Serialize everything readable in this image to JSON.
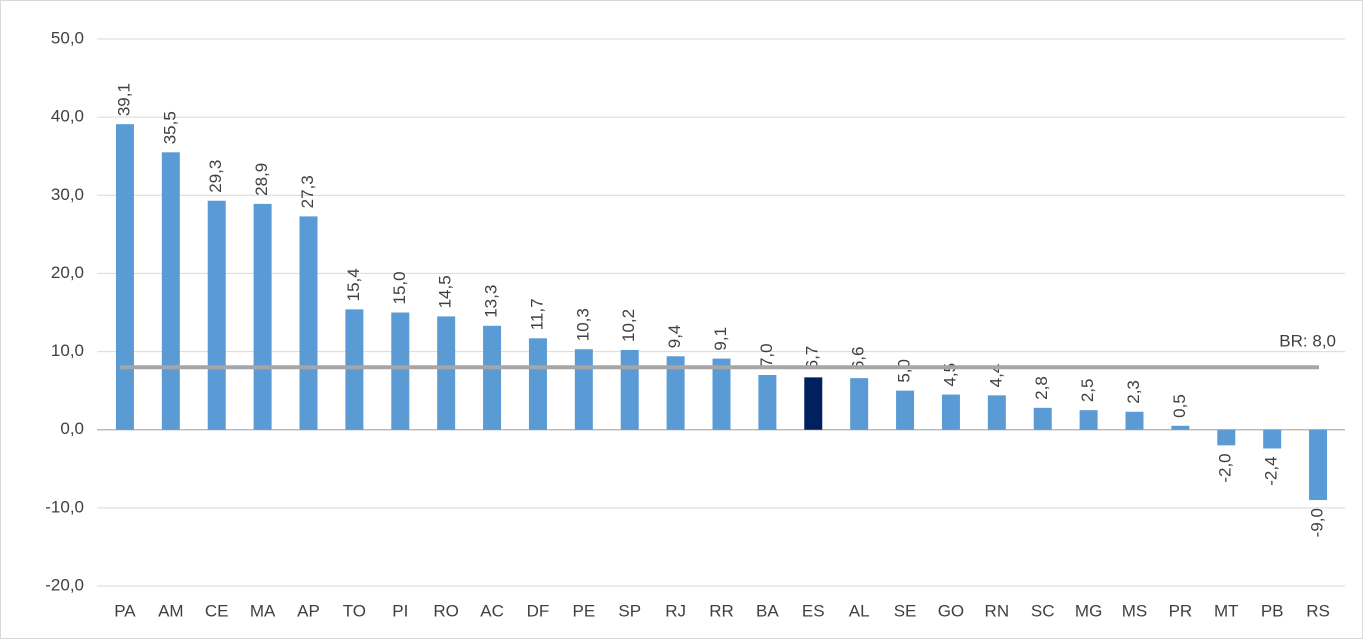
{
  "chart_data": {
    "type": "bar",
    "categories": [
      "PA",
      "AM",
      "CE",
      "MA",
      "AP",
      "TO",
      "PI",
      "RO",
      "AC",
      "DF",
      "PE",
      "SP",
      "RJ",
      "RR",
      "BA",
      "ES",
      "AL",
      "SE",
      "GO",
      "RN",
      "SC",
      "MG",
      "MS",
      "PR",
      "MT",
      "PB",
      "RS"
    ],
    "values": [
      39.1,
      35.5,
      29.3,
      28.9,
      27.3,
      15.4,
      15.0,
      14.5,
      13.3,
      11.7,
      10.3,
      10.2,
      9.4,
      9.1,
      7.0,
      6.7,
      6.6,
      5.0,
      4.5,
      4.4,
      2.8,
      2.5,
      2.3,
      0.5,
      -2.0,
      -2.4,
      -9.0
    ],
    "value_labels": [
      "39,1",
      "35,5",
      "29,3",
      "28,9",
      "27,3",
      "15,4",
      "15,0",
      "14,5",
      "13,3",
      "11,7",
      "10,3",
      "10,2",
      "9,4",
      "9,1",
      "7,0",
      "6,7",
      "6,6",
      "5,0",
      "4,5",
      "4,4",
      "2,8",
      "2,5",
      "2,3",
      "0,5",
      "-2,0",
      "-2,4",
      "-9,0"
    ],
    "colors": [
      "#5b9bd5",
      "#5b9bd5",
      "#5b9bd5",
      "#5b9bd5",
      "#5b9bd5",
      "#5b9bd5",
      "#5b9bd5",
      "#5b9bd5",
      "#5b9bd5",
      "#5b9bd5",
      "#5b9bd5",
      "#5b9bd5",
      "#5b9bd5",
      "#5b9bd5",
      "#5b9bd5",
      "#002060",
      "#5b9bd5",
      "#5b9bd5",
      "#5b9bd5",
      "#5b9bd5",
      "#5b9bd5",
      "#5b9bd5",
      "#5b9bd5",
      "#5b9bd5",
      "#5b9bd5",
      "#5b9bd5",
      "#5b9bd5"
    ],
    "ylim": [
      -20,
      50
    ],
    "yticks": [
      {
        "value": -20,
        "label": "-20,0"
      },
      {
        "value": -10,
        "label": "-10,0"
      },
      {
        "value": 0,
        "label": "0,0"
      },
      {
        "value": 10,
        "label": "10,0"
      },
      {
        "value": 20,
        "label": "20,0"
      },
      {
        "value": 30,
        "label": "30,0"
      },
      {
        "value": 40,
        "label": "40,0"
      },
      {
        "value": 50,
        "label": "50,0"
      }
    ],
    "grid": true,
    "reference_line": {
      "value": 8.0,
      "label": "BR: 8,0",
      "color": "#a6a6a6"
    }
  }
}
